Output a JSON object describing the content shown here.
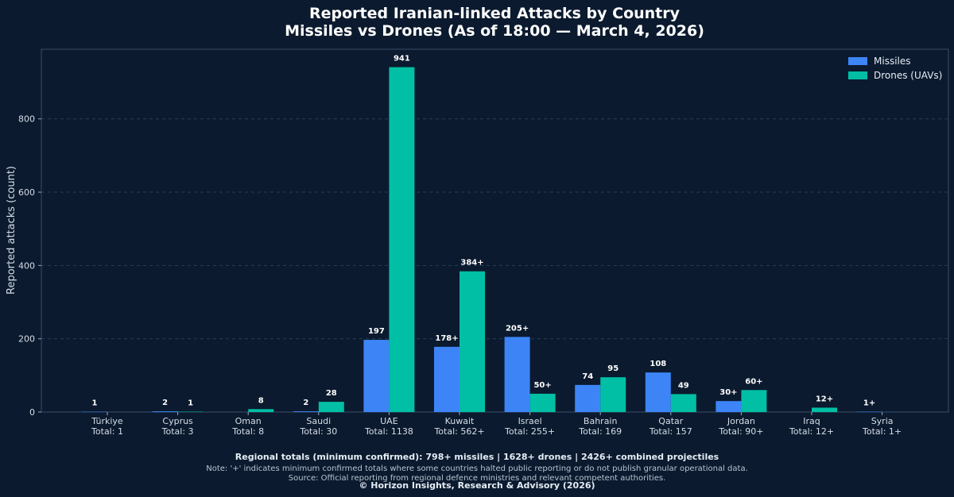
{
  "chart_data": {
    "type": "bar",
    "title": "Reported Iranian-linked Attacks by Country",
    "subtitle": "Missiles vs Drones (As of 18:00 — March 4, 2026)",
    "xlabel": "",
    "ylabel": "Reported attacks (count)",
    "ylim": [
      0,
      990
    ],
    "yticks": [
      0,
      200,
      400,
      600,
      800
    ],
    "grid": true,
    "legend_position": "top-right",
    "categories": [
      "Türkiye",
      "Cyprus",
      "Oman",
      "Saudi",
      "UAE",
      "Kuwait",
      "Israel",
      "Bahrain",
      "Qatar",
      "Jordan",
      "Iraq",
      "Syria"
    ],
    "category_totals": [
      "Total: 1",
      "Total: 3",
      "Total: 8",
      "Total: 30",
      "Total: 1138",
      "Total: 562+",
      "Total: 255+",
      "Total: 169",
      "Total: 157",
      "Total: 90+",
      "Total: 12+",
      "Total: 1+"
    ],
    "series": [
      {
        "name": "Missiles",
        "color": "#3d85f7",
        "values": [
          1,
          2,
          0,
          2,
          197,
          178,
          205,
          74,
          108,
          30,
          0,
          1
        ],
        "labels": [
          "1",
          "2",
          "",
          "2",
          "197",
          "178+",
          "205+",
          "74",
          "108",
          "30+",
          "",
          "1+"
        ]
      },
      {
        "name": "Drones (UAVs)",
        "color": "#00bfa5",
        "values": [
          0,
          1,
          8,
          28,
          941,
          384,
          50,
          95,
          49,
          60,
          12,
          0
        ],
        "labels": [
          "",
          "1",
          "8",
          "28",
          "941",
          "384+",
          "50+",
          "95",
          "49",
          "60+",
          "12+",
          ""
        ]
      }
    ]
  },
  "footer": {
    "totals": "Regional totals (minimum confirmed): 798+ missiles | 1628+ drones | 2426+ combined projectiles",
    "note": "Note: '+' indicates minimum confirmed totals where some countries halted public reporting or do not publish granular operational data.",
    "source": "Source: Official reporting from regional defence ministries and relevant competent authorities.",
    "copyright": "© Horizon Insights, Research & Advisory (2026)"
  }
}
